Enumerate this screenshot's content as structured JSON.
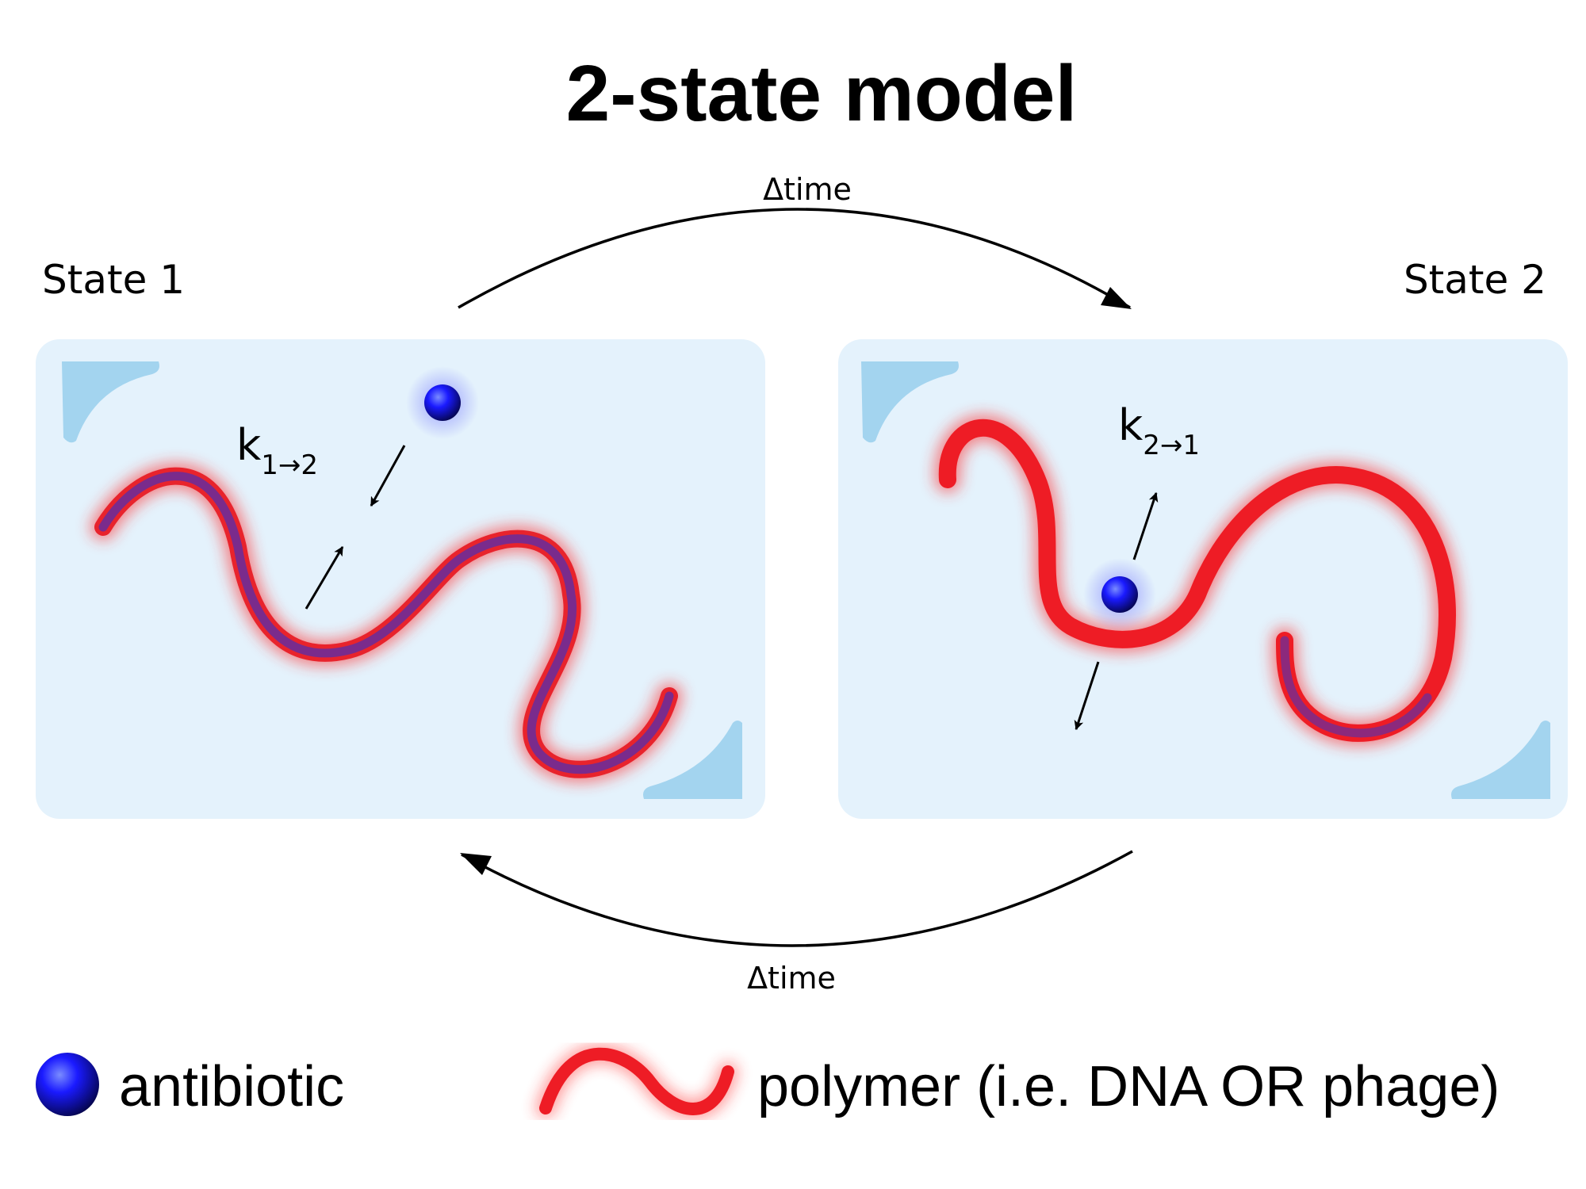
{
  "title": "2-state model",
  "states": [
    {
      "label": "State 1",
      "rate_symbol": "k",
      "rate_subscript": "1→2"
    },
    {
      "label": "State 2",
      "rate_symbol": "k",
      "rate_subscript": "2→1"
    }
  ],
  "transitions": {
    "forward_label": "Δtime",
    "backward_label": "Δtime"
  },
  "legend": {
    "antibiotic": "antibiotic",
    "polymer": "polymer (i.e. DNA OR phage)"
  },
  "colors": {
    "panel": "#e4f2fc",
    "corner": "#a3d4ef",
    "polymer_bound": "#7a2b8c",
    "polymer_free": "#ee1c25",
    "antibiotic": "#1414ff"
  }
}
